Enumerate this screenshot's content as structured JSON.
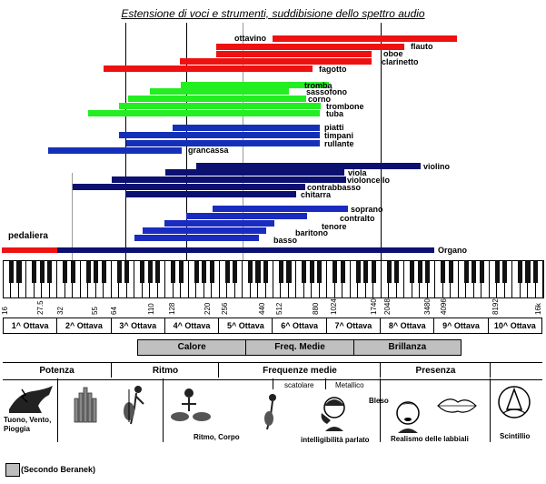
{
  "title": "Estensione di voci e strumenti, suddibisione dello spettro audio",
  "colors": {
    "legni": "#ee1111",
    "ottoni": "#22ee22",
    "percussioni": "#1530b8",
    "archi": "#0c1070",
    "voci": "#1a2bbf"
  },
  "instruments": [
    {
      "name": "ottavino",
      "group": "legni"
    },
    {
      "name": "flauto",
      "group": "legni"
    },
    {
      "name": "oboe",
      "group": "legni"
    },
    {
      "name": "clarinetto",
      "group": "legni"
    },
    {
      "name": "fagotto",
      "group": "legni"
    },
    {
      "name": "tromba",
      "group": "ottoni"
    },
    {
      "name": "sassofono",
      "group": "ottoni"
    },
    {
      "name": "corno",
      "group": "ottoni"
    },
    {
      "name": "trombone",
      "group": "ottoni"
    },
    {
      "name": "tuba",
      "group": "ottoni"
    },
    {
      "name": "piatti",
      "group": "percussioni"
    },
    {
      "name": "timpani",
      "group": "percussioni"
    },
    {
      "name": "rullante",
      "group": "percussioni"
    },
    {
      "name": "grancassa",
      "group": "percussioni"
    },
    {
      "name": "violino",
      "group": "archi"
    },
    {
      "name": "viola",
      "group": "archi"
    },
    {
      "name": "violoncello",
      "group": "archi"
    },
    {
      "name": "contrabbasso",
      "group": "archi"
    },
    {
      "name": "chitarra",
      "group": "archi"
    },
    {
      "name": "soprano",
      "group": "voci"
    },
    {
      "name": "contralto",
      "group": "voci"
    },
    {
      "name": "tenore",
      "group": "voci"
    },
    {
      "name": "baritono",
      "group": "voci"
    },
    {
      "name": "basso",
      "group": "voci"
    }
  ],
  "pedaliera_label": "pedaliera",
  "organo_label": "Organo",
  "frequencies": [
    "16",
    "27.5",
    "32",
    "55",
    "64",
    "110",
    "128",
    "220",
    "256",
    "440",
    "512",
    "880",
    "1024",
    "1740",
    "2048",
    "3480",
    "4096",
    "8192",
    "16k"
  ],
  "octaves": [
    "1^ Ottava",
    "2^ Ottava",
    "3^ Ottava",
    "4^ Ottava",
    "5^ Ottava",
    "6^ Ottava",
    "7^ Ottava",
    "8^ Ottava",
    "9^ Ottava",
    "10^ Ottava"
  ],
  "bands": [
    "Calore",
    "Freq. Medie",
    "Brillanza"
  ],
  "categories": [
    "Potenza",
    "Ritmo",
    "Frequenze medie",
    "Presenza"
  ],
  "notes": {
    "tuono": "Tuono, Vento, Pioggia",
    "ritmo": "Ritmo, Corpo",
    "scatolare": "scatolare",
    "metallico": "Metallico",
    "intelligibilita": "intelligibilità parlato",
    "bleso": "Bleso",
    "realismo": "Realismo delle labbiali",
    "scintillio": "Scintillio"
  },
  "legend": "(Secondo Beranek)"
}
